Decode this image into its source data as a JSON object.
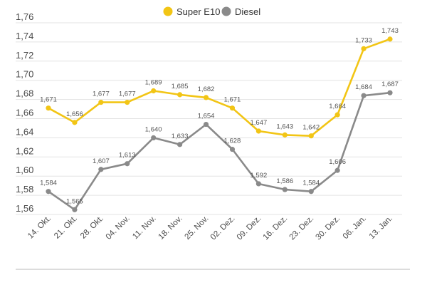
{
  "chart_data": {
    "type": "line",
    "title": "",
    "xlabel": "",
    "ylabel": "",
    "categories": [
      "14. Okt.",
      "21. Okt.",
      "28. Okt.",
      "04. Nov.",
      "11. Nov.",
      "18. Nov.",
      "25. Nov.",
      "02. Dez.",
      "09. Dez.",
      "16. Dez.",
      "23. Dez.",
      "30. Dez.",
      "06. Jan.",
      "13. Jan."
    ],
    "series": [
      {
        "name": "Super E10",
        "color": "#f2c515",
        "values": [
          1.671,
          1.656,
          1.677,
          1.677,
          1.689,
          1.685,
          1.682,
          1.671,
          1.647,
          1.643,
          1.642,
          1.664,
          1.733,
          1.743
        ],
        "labels": [
          "1,671",
          "1,656",
          "1,677",
          "1,677",
          "1,689",
          "1,685",
          "1,682",
          "1,671",
          "1,647",
          "1,643",
          "1,642",
          "1,664",
          "1,733",
          "1,743"
        ]
      },
      {
        "name": "Diesel",
        "color": "#8a8a8a",
        "values": [
          1.584,
          1.565,
          1.607,
          1.613,
          1.64,
          1.633,
          1.654,
          1.628,
          1.592,
          1.586,
          1.584,
          1.606,
          1.684,
          1.687
        ],
        "labels": [
          "1,584",
          "1,565",
          "1,607",
          "1,613",
          "1,640",
          "1,633",
          "1,654",
          "1,628",
          "1,592",
          "1,586",
          "1,584",
          "1,606",
          "1,684",
          "1,687"
        ]
      }
    ],
    "ylim": [
      1.56,
      1.76
    ],
    "yticks": [
      1.56,
      1.58,
      1.6,
      1.62,
      1.64,
      1.66,
      1.68,
      1.7,
      1.72,
      1.74,
      1.76
    ],
    "ytick_labels": [
      "1,56",
      "1,58",
      "1,60",
      "1,62",
      "1,64",
      "1,66",
      "1,68",
      "1,70",
      "1,72",
      "1,74",
      "1,76"
    ],
    "grid": true,
    "legend_position": "top-center"
  }
}
